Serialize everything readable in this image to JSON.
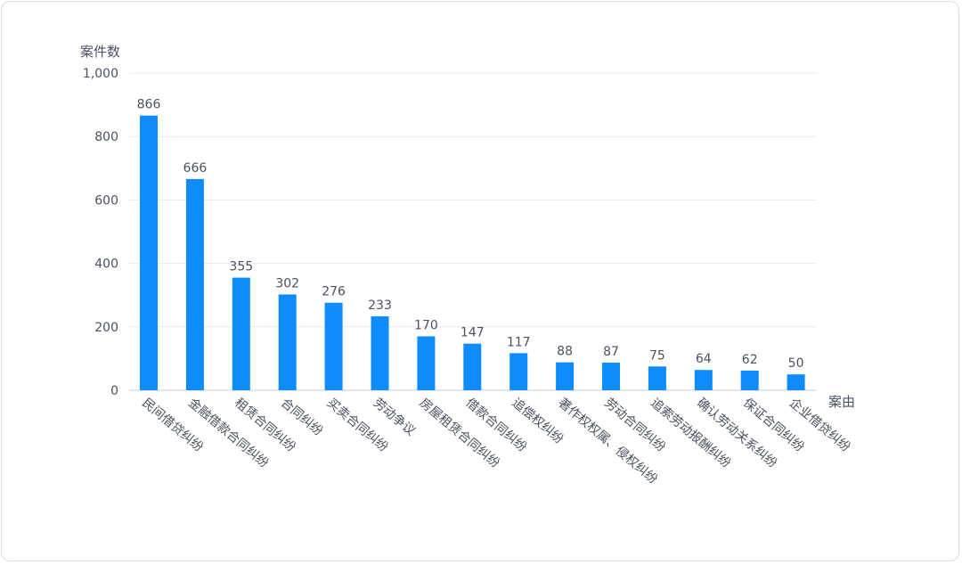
{
  "chart_data": {
    "type": "bar",
    "title": "",
    "ylabel": "案件数",
    "xlabel": "案由",
    "ylim": [
      0,
      1000
    ],
    "yticks": [
      0,
      200,
      400,
      600,
      800,
      1000
    ],
    "ytick_labels": [
      "0",
      "200",
      "400",
      "600",
      "800",
      "1,000"
    ],
    "grid": true,
    "bar_color": "#0f8cfb",
    "categories": [
      "民间借贷纠纷",
      "金融借款合同纠纷",
      "租赁合同纠纷",
      "合同纠纷",
      "买卖合同纠纷",
      "劳动争议",
      "房屋租赁合同纠纷",
      "借款合同纠纷",
      "追偿权纠纷",
      "著作权权属、侵权纠纷",
      "劳动合同纠纷",
      "追索劳动报酬纠纷",
      "确认劳动关系纠纷",
      "保证合同纠纷",
      "企业借贷纠纷"
    ],
    "values": [
      866,
      666,
      355,
      302,
      276,
      233,
      170,
      147,
      117,
      88,
      87,
      75,
      64,
      62,
      50
    ]
  }
}
